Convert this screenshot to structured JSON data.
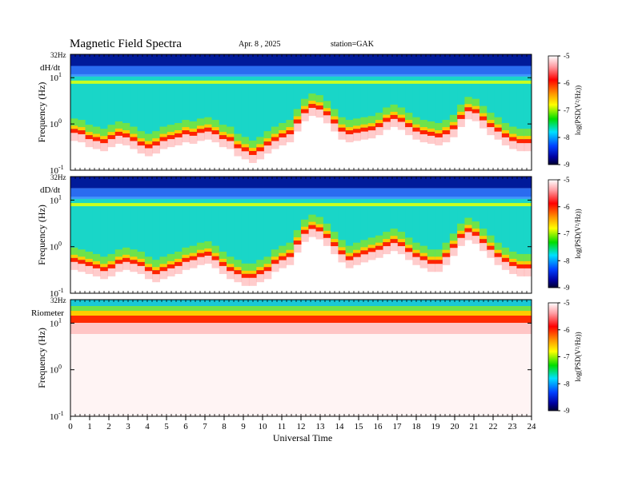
{
  "header": {
    "title": "Magnetic Field Spectra",
    "date": "Apr. 8 , 2025",
    "station": "station=GAK"
  },
  "chart_data": [
    {
      "type": "heatmap",
      "panel_label": "dH/dt",
      "top_label": "32Hz",
      "ylabel": "Frequency (Hz)",
      "y_scale": "log",
      "y_ticks": [
        {
          "base": "10",
          "exp": "1"
        },
        {
          "base": "10",
          "exp": "0"
        },
        {
          "base": "10",
          "exp": "-1"
        }
      ],
      "ylim": [
        0.1,
        32
      ],
      "xlim": [
        0,
        24
      ],
      "colorbar": {
        "label": "log(PSD(V²/Hz))",
        "ticks": [
          "-5",
          "-6",
          "-7",
          "-8",
          "-9"
        ],
        "range": [
          -9,
          -5
        ]
      },
      "noise_floor_hz": [
        0.75,
        0.7,
        0.55,
        0.5,
        0.45,
        0.55,
        0.65,
        0.6,
        0.5,
        0.4,
        0.35,
        0.4,
        0.5,
        0.55,
        0.6,
        0.7,
        0.65,
        0.75,
        0.8,
        0.7,
        0.55,
        0.5,
        0.35,
        0.3,
        0.25,
        0.3,
        0.4,
        0.5,
        0.6,
        0.7,
        1.2,
        2.0,
        2.6,
        2.4,
        1.8,
        1.2,
        0.8,
        0.7,
        0.75,
        0.8,
        0.85,
        1.0,
        1.3,
        1.5,
        1.3,
        1.0,
        0.8,
        0.7,
        0.65,
        0.6,
        0.7,
        0.9,
        1.5,
        2.2,
        2.0,
        1.4,
        1.0,
        0.8,
        0.6,
        0.5,
        0.45,
        0.45
      ]
    },
    {
      "type": "heatmap",
      "panel_label": "dD/dt",
      "top_label": "32Hz",
      "ylabel": "Frequency (Hz)",
      "y_scale": "log",
      "y_ticks": [
        {
          "base": "10",
          "exp": "1"
        },
        {
          "base": "10",
          "exp": "0"
        },
        {
          "base": "10",
          "exp": "-1"
        }
      ],
      "ylim": [
        0.1,
        32
      ],
      "xlim": [
        0,
        24
      ],
      "colorbar": {
        "label": "log(PSD(V²/Hz))",
        "ticks": [
          "-5",
          "-6",
          "-7",
          "-8",
          "-9"
        ],
        "range": [
          -9,
          -5
        ]
      },
      "noise_floor_hz": [
        0.55,
        0.5,
        0.45,
        0.4,
        0.35,
        0.4,
        0.5,
        0.55,
        0.5,
        0.45,
        0.35,
        0.3,
        0.35,
        0.4,
        0.45,
        0.55,
        0.6,
        0.7,
        0.75,
        0.6,
        0.45,
        0.35,
        0.3,
        0.25,
        0.25,
        0.3,
        0.35,
        0.5,
        0.6,
        0.7,
        1.3,
        2.2,
        2.8,
        2.5,
        1.8,
        1.2,
        0.8,
        0.6,
        0.7,
        0.8,
        0.9,
        1.0,
        1.2,
        1.4,
        1.2,
        0.9,
        0.7,
        0.6,
        0.5,
        0.5,
        0.7,
        1.1,
        1.8,
        2.4,
        2.0,
        1.4,
        1.0,
        0.7,
        0.55,
        0.45,
        0.4,
        0.4
      ]
    },
    {
      "type": "heatmap",
      "panel_label": "Riometer",
      "top_label": "32Hz",
      "ylabel": "Frequency (Hz)",
      "y_scale": "log",
      "y_ticks": [
        {
          "base": "10",
          "exp": "1"
        },
        {
          "base": "10",
          "exp": "0"
        },
        {
          "base": "10",
          "exp": "-1"
        }
      ],
      "ylim": [
        0.1,
        32
      ],
      "xlim": [
        0,
        24
      ],
      "colorbar": {
        "label": "log(PSD(V²/Hz))",
        "ticks": [
          "-5",
          "-6",
          "-7",
          "-8",
          "-9"
        ],
        "range": [
          -9,
          -5
        ]
      },
      "noise_floor_hz": [
        14,
        14,
        13,
        13,
        13,
        13,
        13,
        14,
        14,
        14,
        13,
        13,
        13,
        13,
        13,
        13,
        13,
        13,
        13,
        13,
        13,
        13,
        13,
        13,
        13,
        13,
        13,
        13,
        13,
        13,
        13,
        13,
        13,
        13,
        13,
        13,
        13,
        13,
        13,
        13,
        13,
        13,
        13,
        13,
        13,
        13,
        13,
        13,
        13,
        13,
        13,
        13,
        13,
        13,
        13,
        13,
        13,
        13,
        13,
        13,
        13,
        13
      ]
    }
  ],
  "x_axis": {
    "label": "Universal Time",
    "ticks": [
      "0",
      "1",
      "2",
      "3",
      "4",
      "5",
      "6",
      "7",
      "8",
      "9",
      "10",
      "11",
      "12",
      "13",
      "14",
      "15",
      "16",
      "17",
      "18",
      "19",
      "20",
      "21",
      "22",
      "23",
      "24"
    ]
  }
}
